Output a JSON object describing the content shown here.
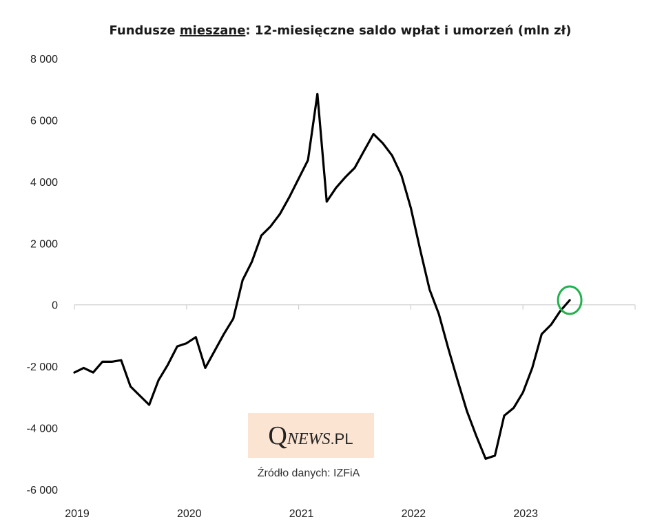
{
  "chart_data": {
    "type": "line",
    "title_before": "Fundusze ",
    "title_underlined": "mieszane",
    "title_after": ": 12-miesięczne saldo wpłat i umorzeń (mln zł)",
    "xlabel": "",
    "ylabel": "",
    "ylim": [
      -6000,
      8000
    ],
    "y_ticks": [
      8000,
      6000,
      4000,
      2000,
      0,
      -2000,
      -4000,
      -6000
    ],
    "y_tick_labels": [
      "8 000",
      "6 000",
      "4 000",
      "2 000",
      "0",
      "-2 000",
      "-4 000",
      "-6 000"
    ],
    "x_ticks": [
      2019,
      2020,
      2021,
      2022,
      2023,
      2024
    ],
    "x_tick_labels": [
      "2019",
      "2020",
      "2021",
      "2022",
      "2023"
    ],
    "grid": false,
    "series": [
      {
        "color": "#000000",
        "x": [
          2019.0,
          2019.083,
          2019.167,
          2019.25,
          2019.333,
          2019.417,
          2019.5,
          2019.583,
          2019.667,
          2019.75,
          2019.833,
          2019.917,
          2020.0,
          2020.083,
          2020.167,
          2020.25,
          2020.333,
          2020.417,
          2020.5,
          2020.583,
          2020.667,
          2020.75,
          2020.833,
          2020.917,
          2021.0,
          2021.083,
          2021.167,
          2021.25,
          2021.333,
          2021.417,
          2021.5,
          2021.583,
          2021.667,
          2021.75,
          2021.833,
          2021.917,
          2022.0,
          2022.083,
          2022.167,
          2022.25,
          2022.333,
          2022.417,
          2022.5,
          2022.583,
          2022.667,
          2022.75,
          2022.833,
          2022.917,
          2023.0,
          2023.083,
          2023.167,
          2023.25,
          2023.333,
          2023.417
        ],
        "values": [
          -2200,
          -2050,
          -2200,
          -1850,
          -1850,
          -1800,
          -2650,
          -2950,
          -3250,
          -2450,
          -1950,
          -1350,
          -1250,
          -1050,
          -2050,
          -1500,
          -950,
          -450,
          800,
          1400,
          2250,
          2550,
          2950,
          3500,
          4100,
          4700,
          6850,
          3350,
          3800,
          4150,
          4450,
          5000,
          5550,
          5250,
          4850,
          4200,
          3150,
          1800,
          500,
          -300,
          -1400,
          -2450,
          -3450,
          -4250,
          -5000,
          -4900,
          -3600,
          -3350,
          -2850,
          -2050,
          -950,
          -650,
          -200,
          150
        ]
      }
    ],
    "annotation": {
      "type": "circle",
      "color": "#22b14c",
      "x": 2023.417,
      "y": 150
    },
    "source": "Źródło danych: IZFiA",
    "logo": {
      "q": "Q",
      "news": "NEWS",
      "pl": ".PL",
      "background": "#fce4d2"
    }
  }
}
